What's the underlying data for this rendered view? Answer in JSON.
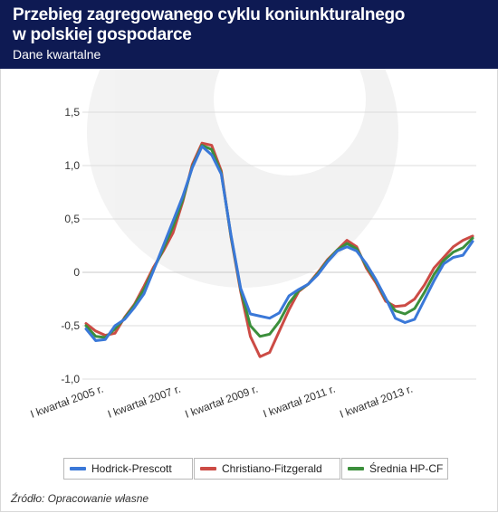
{
  "header": {
    "title_line1": "Przebieg zagregowanego cyklu koniunkturalnego",
    "title_line2": "w polskiej gospodarce",
    "subtitle": "Dane kwartalne"
  },
  "source": "Źródło: Opracowanie własne",
  "chart_data": {
    "type": "line",
    "title": "Przebieg zagregowanego cyklu koniunkturalnego w polskiej gospodarce",
    "subtitle": "Dane kwartalne",
    "ylim": [
      -1.0,
      1.5
    ],
    "y_ticks": [
      -1.0,
      -0.5,
      0,
      0.5,
      1.0,
      1.5
    ],
    "y_tick_labels": [
      "-1,0",
      "-0,5",
      "0",
      "0,5",
      "1,0",
      "1,5"
    ],
    "x_labels": [
      {
        "index": 0,
        "label": "I kwartał 2005 r."
      },
      {
        "index": 8,
        "label": "I kwartał 2007 r."
      },
      {
        "index": 16,
        "label": "I kwartał 2009 r."
      },
      {
        "index": 24,
        "label": "I kwartał 2011 r."
      },
      {
        "index": 32,
        "label": "I kwartał 2013 r."
      }
    ],
    "grid": true,
    "legend_position": "bottom",
    "series": [
      {
        "name": "Hodrick-Prescott",
        "color": "#3a78d8",
        "values": [
          -0.53,
          -0.64,
          -0.63,
          -0.5,
          -0.44,
          -0.33,
          -0.2,
          0.02,
          0.25,
          0.48,
          0.71,
          0.98,
          1.18,
          1.1,
          0.92,
          0.35,
          -0.15,
          -0.39,
          -0.41,
          -0.43,
          -0.38,
          -0.22,
          -0.16,
          -0.11,
          -0.02,
          0.1,
          0.2,
          0.24,
          0.2,
          0.08,
          -0.07,
          -0.24,
          -0.43,
          -0.47,
          -0.44,
          -0.26,
          -0.08,
          0.08,
          0.14,
          0.16,
          0.29
        ]
      },
      {
        "name": "Christiano-Fitzgerald",
        "color": "#cc4b45",
        "values": [
          -0.48,
          -0.55,
          -0.59,
          -0.57,
          -0.42,
          -0.3,
          -0.13,
          0.05,
          0.2,
          0.37,
          0.66,
          1.01,
          1.21,
          1.19,
          0.95,
          0.33,
          -0.18,
          -0.6,
          -0.79,
          -0.75,
          -0.55,
          -0.35,
          -0.18,
          -0.11,
          0.0,
          0.12,
          0.21,
          0.3,
          0.24,
          0.04,
          -0.1,
          -0.27,
          -0.32,
          -0.31,
          -0.25,
          -0.12,
          0.04,
          0.14,
          0.24,
          0.3,
          0.34
        ]
      },
      {
        "name": "Średnia HP-CF",
        "color": "#3c8f3c",
        "values": [
          -0.5,
          -0.6,
          -0.61,
          -0.53,
          -0.43,
          -0.31,
          -0.16,
          0.03,
          0.22,
          0.43,
          0.68,
          0.99,
          1.19,
          1.15,
          0.93,
          0.34,
          -0.16,
          -0.5,
          -0.6,
          -0.58,
          -0.46,
          -0.29,
          -0.17,
          -0.11,
          -0.01,
          0.11,
          0.21,
          0.27,
          0.22,
          0.06,
          -0.08,
          -0.25,
          -0.36,
          -0.39,
          -0.34,
          -0.19,
          -0.02,
          0.11,
          0.19,
          0.23,
          0.32
        ]
      }
    ]
  }
}
